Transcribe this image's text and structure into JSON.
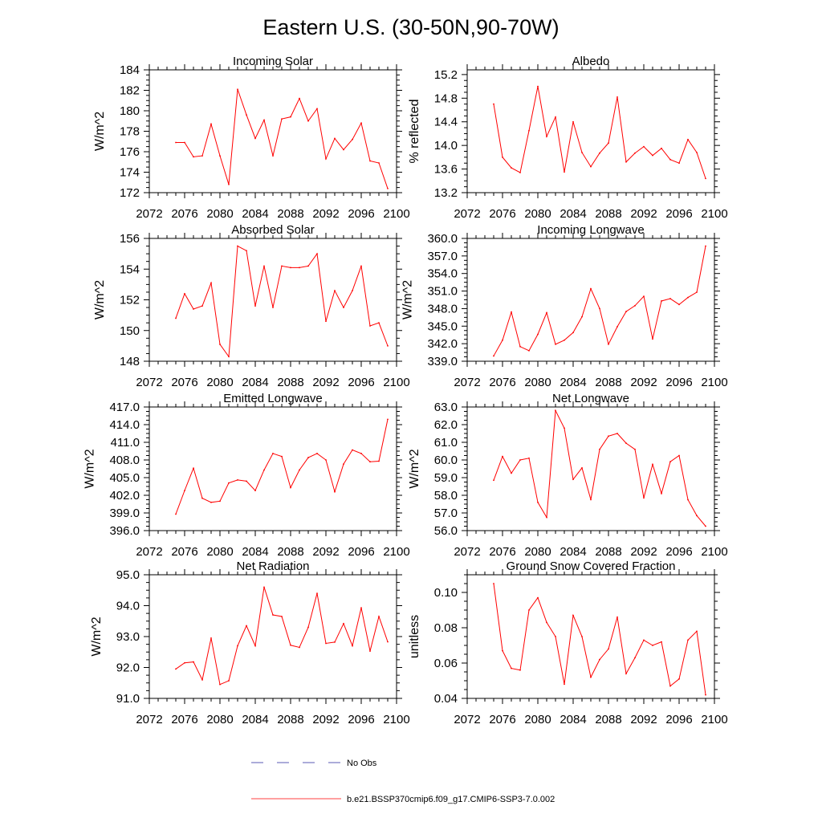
{
  "title": "Eastern U.S. (30-50N,90-70W)",
  "legend": [
    {
      "label": "No Obs",
      "color": "#5a5ab4"
    },
    {
      "label": "b.e21.BSSP370cmip6.f09_g17.CMIP6-SSP3-7.0.002",
      "color": "#ff0000"
    }
  ],
  "chart_data": [
    {
      "type": "line",
      "title": "Incoming Solar",
      "xlabel": "",
      "ylabel": "W/m^2",
      "xlim": [
        2072,
        2100
      ],
      "ylim": [
        172,
        184
      ],
      "xticks": [
        "2072",
        "2076",
        "2080",
        "2084",
        "2088",
        "2092",
        "2096",
        "2100"
      ],
      "yticks": [
        "172",
        "174",
        "176",
        "178",
        "180",
        "182",
        "184"
      ],
      "x": [
        2075,
        2076,
        2077,
        2078,
        2079,
        2080,
        2081,
        2082,
        2083,
        2084,
        2085,
        2086,
        2087,
        2088,
        2089,
        2090,
        2091,
        2092,
        2093,
        2094,
        2095,
        2096,
        2097,
        2098,
        2099
      ],
      "series": [
        {
          "values": [
            176.9,
            176.9,
            175.5,
            175.6,
            178.7,
            175.6,
            172.8,
            182.1,
            179.6,
            177.3,
            179.1,
            175.6,
            179.2,
            179.4,
            181.2,
            179.0,
            180.2,
            175.3,
            177.3,
            176.2,
            177.2,
            178.8,
            175.1,
            174.9,
            172.4
          ]
        }
      ]
    },
    {
      "type": "line",
      "title": "Albedo",
      "xlabel": "",
      "ylabel": "% reflected",
      "xlim": [
        2072,
        2100
      ],
      "ylim": [
        13.2,
        15.28
      ],
      "xticks": [
        "2072",
        "2076",
        "2080",
        "2084",
        "2088",
        "2092",
        "2096",
        "2100"
      ],
      "yticks": [
        "13.2",
        "13.6",
        "14.0",
        "14.4",
        "14.8",
        "15.2"
      ],
      "x": [
        2075,
        2076,
        2077,
        2078,
        2079,
        2080,
        2081,
        2082,
        2083,
        2084,
        2085,
        2086,
        2087,
        2088,
        2089,
        2090,
        2091,
        2092,
        2093,
        2094,
        2095,
        2096,
        2097,
        2098,
        2099
      ],
      "series": [
        {
          "values": [
            14.7,
            13.8,
            13.62,
            13.54,
            14.25,
            15.0,
            14.15,
            14.48,
            13.55,
            14.4,
            13.88,
            13.64,
            13.87,
            14.04,
            14.82,
            13.72,
            13.87,
            13.98,
            13.83,
            13.95,
            13.76,
            13.7,
            14.1,
            13.88,
            13.44
          ]
        }
      ]
    },
    {
      "type": "line",
      "title": "Absorbed Solar",
      "xlabel": "",
      "ylabel": "W/m^2",
      "xlim": [
        2072,
        2100
      ],
      "ylim": [
        148,
        156
      ],
      "xticks": [
        "2072",
        "2076",
        "2080",
        "2084",
        "2088",
        "2092",
        "2096",
        "2100"
      ],
      "yticks": [
        "148",
        "150",
        "152",
        "154",
        "156"
      ],
      "x": [
        2075,
        2076,
        2077,
        2078,
        2079,
        2080,
        2081,
        2082,
        2083,
        2084,
        2085,
        2086,
        2087,
        2088,
        2089,
        2090,
        2091,
        2092,
        2093,
        2094,
        2095,
        2096,
        2097,
        2098,
        2099
      ],
      "series": [
        {
          "values": [
            150.8,
            152.4,
            151.4,
            151.6,
            153.1,
            149.1,
            148.3,
            155.5,
            155.2,
            151.6,
            154.2,
            151.5,
            154.2,
            154.1,
            154.1,
            154.2,
            155.0,
            150.6,
            152.6,
            151.5,
            152.6,
            154.2,
            150.3,
            150.5,
            149.0
          ]
        }
      ]
    },
    {
      "type": "line",
      "title": "Incoming Longwave",
      "xlabel": "",
      "ylabel": "W/m^2",
      "xlim": [
        2072,
        2100
      ],
      "ylim": [
        339,
        360
      ],
      "xticks": [
        "2072",
        "2076",
        "2080",
        "2084",
        "2088",
        "2092",
        "2096",
        "2100"
      ],
      "yticks": [
        "339.0",
        "342.0",
        "345.0",
        "348.0",
        "351.0",
        "354.0",
        "357.0",
        "360.0"
      ],
      "x": [
        2075,
        2076,
        2077,
        2078,
        2079,
        2080,
        2081,
        2082,
        2083,
        2084,
        2085,
        2086,
        2087,
        2088,
        2089,
        2090,
        2091,
        2092,
        2093,
        2094,
        2095,
        2096,
        2097,
        2098,
        2099
      ],
      "series": [
        {
          "values": [
            339.9,
            342.6,
            347.4,
            341.5,
            340.8,
            343.6,
            347.3,
            341.9,
            342.6,
            343.9,
            346.6,
            351.4,
            348.0,
            341.9,
            344.9,
            347.5,
            348.5,
            350.1,
            342.8,
            349.3,
            349.7,
            348.7,
            349.9,
            350.8,
            358.7
          ]
        }
      ]
    },
    {
      "type": "line",
      "title": "Emitted Longwave",
      "xlabel": "",
      "ylabel": "W/m^2",
      "xlim": [
        2072,
        2100
      ],
      "ylim": [
        396,
        417
      ],
      "xticks": [
        "2072",
        "2076",
        "2080",
        "2084",
        "2088",
        "2092",
        "2096",
        "2100"
      ],
      "yticks": [
        "396.0",
        "399.0",
        "402.0",
        "405.0",
        "408.0",
        "411.0",
        "414.0",
        "417.0"
      ],
      "x": [
        2075,
        2076,
        2077,
        2078,
        2079,
        2080,
        2081,
        2082,
        2083,
        2084,
        2085,
        2086,
        2087,
        2088,
        2089,
        2090,
        2091,
        2092,
        2093,
        2094,
        2095,
        2096,
        2097,
        2098,
        2099
      ],
      "series": [
        {
          "values": [
            398.8,
            402.8,
            406.6,
            401.5,
            400.8,
            401.0,
            404.1,
            404.6,
            404.4,
            402.8,
            406.3,
            409.1,
            408.6,
            403.3,
            406.3,
            408.4,
            409.1,
            408.0,
            402.6,
            407.3,
            409.7,
            409.1,
            407.7,
            407.8,
            414.9
          ]
        }
      ]
    },
    {
      "type": "line",
      "title": "Net Longwave",
      "xlabel": "",
      "ylabel": "W/m^2",
      "xlim": [
        2072,
        2100
      ],
      "ylim": [
        56,
        63
      ],
      "xticks": [
        "2072",
        "2076",
        "2080",
        "2084",
        "2088",
        "2092",
        "2096",
        "2100"
      ],
      "yticks": [
        "56.0",
        "57.0",
        "58.0",
        "59.0",
        "60.0",
        "61.0",
        "62.0",
        "63.0"
      ],
      "x": [
        2075,
        2076,
        2077,
        2078,
        2079,
        2080,
        2081,
        2082,
        2083,
        2084,
        2085,
        2086,
        2087,
        2088,
        2089,
        2090,
        2091,
        2092,
        2093,
        2094,
        2095,
        2096,
        2097,
        2098,
        2099
      ],
      "series": [
        {
          "values": [
            58.85,
            60.2,
            59.25,
            60.0,
            60.1,
            57.6,
            56.75,
            62.8,
            61.8,
            58.9,
            59.55,
            57.75,
            60.6,
            61.35,
            61.5,
            60.95,
            60.6,
            57.85,
            59.75,
            58.1,
            59.9,
            60.25,
            57.75,
            56.85,
            56.25
          ]
        }
      ]
    },
    {
      "type": "line",
      "title": "Net Radiation",
      "xlabel": "",
      "ylabel": "W/m^2",
      "xlim": [
        2072,
        2100
      ],
      "ylim": [
        91,
        95
      ],
      "xticks": [
        "2072",
        "2076",
        "2080",
        "2084",
        "2088",
        "2092",
        "2096",
        "2100"
      ],
      "yticks": [
        "91.0",
        "92.0",
        "93.0",
        "94.0",
        "95.0"
      ],
      "x": [
        2075,
        2076,
        2077,
        2078,
        2079,
        2080,
        2081,
        2082,
        2083,
        2084,
        2085,
        2086,
        2087,
        2088,
        2089,
        2090,
        2091,
        2092,
        2093,
        2094,
        2095,
        2096,
        2097,
        2098,
        2099
      ],
      "series": [
        {
          "values": [
            91.95,
            92.15,
            92.18,
            91.6,
            92.95,
            91.45,
            91.57,
            92.7,
            93.35,
            92.7,
            94.6,
            93.7,
            93.65,
            92.72,
            92.65,
            93.3,
            94.4,
            92.78,
            92.82,
            93.42,
            92.7,
            93.93,
            92.53,
            93.65,
            92.83
          ]
        }
      ]
    },
    {
      "type": "line",
      "title": "Ground Snow Covered Fraction",
      "xlabel": "",
      "ylabel": "unitless",
      "xlim": [
        2072,
        2100
      ],
      "ylim": [
        0.04,
        0.11
      ],
      "xticks": [
        "2072",
        "2076",
        "2080",
        "2084",
        "2088",
        "2092",
        "2096",
        "2100"
      ],
      "yticks": [
        "0.04",
        "0.06",
        "0.08",
        "0.10"
      ],
      "x": [
        2075,
        2076,
        2077,
        2078,
        2079,
        2080,
        2081,
        2082,
        2083,
        2084,
        2085,
        2086,
        2087,
        2088,
        2089,
        2090,
        2091,
        2092,
        2093,
        2094,
        2095,
        2096,
        2097,
        2098,
        2099
      ],
      "series": [
        {
          "values": [
            0.105,
            0.067,
            0.057,
            0.056,
            0.09,
            0.097,
            0.083,
            0.075,
            0.048,
            0.087,
            0.075,
            0.052,
            0.062,
            0.068,
            0.086,
            0.054,
            0.063,
            0.073,
            0.07,
            0.072,
            0.047,
            0.051,
            0.073,
            0.078,
            0.042
          ]
        }
      ]
    }
  ]
}
